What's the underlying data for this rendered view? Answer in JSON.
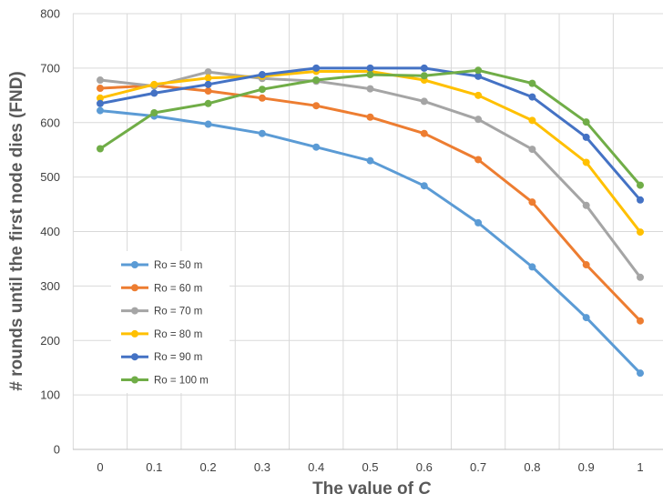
{
  "chart_data": {
    "type": "line",
    "xlabel": "The value of ",
    "xlabel_italic": "C",
    "ylabel": "# rounds until the first node dies (FND)",
    "x": [
      0,
      0.1,
      0.2,
      0.3,
      0.4,
      0.5,
      0.6,
      0.7,
      0.8,
      0.9,
      1
    ],
    "x_tick_labels": [
      "0",
      "0.1",
      "0.2",
      "0.3",
      "0.4",
      "0.5",
      "0.6",
      "0.7",
      "0.8",
      "0.9",
      "1"
    ],
    "ylim": [
      0,
      800
    ],
    "y_ticks": [
      0,
      100,
      200,
      300,
      400,
      500,
      600,
      700,
      800
    ],
    "y_tick_labels": [
      "0",
      "100",
      "200",
      "300",
      "400",
      "500",
      "600",
      "700",
      "800"
    ],
    "grid": true,
    "legend_position": "left-middle",
    "series": [
      {
        "name": "Ro = 50 m",
        "color": "#5B9BD5",
        "values": [
          622,
          612,
          597,
          580,
          555,
          530,
          484,
          416,
          335,
          242,
          140
        ]
      },
      {
        "name": "Ro = 60 m",
        "color": "#ED7D31",
        "values": [
          663,
          668,
          658,
          645,
          631,
          610,
          580,
          532,
          454,
          339,
          236
        ]
      },
      {
        "name": "Ro = 70 m",
        "color": "#A5A5A5",
        "values": [
          678,
          667,
          693,
          681,
          676,
          662,
          639,
          606,
          551,
          448,
          316
        ]
      },
      {
        "name": "Ro = 80 m",
        "color": "#FFC000",
        "values": [
          645,
          670,
          682,
          685,
          694,
          694,
          678,
          650,
          604,
          527,
          399
        ]
      },
      {
        "name": "Ro = 90 m",
        "color": "#4472C4",
        "values": [
          635,
          654,
          670,
          688,
          700,
          700,
          700,
          685,
          647,
          573,
          458
        ]
      },
      {
        "name": "Ro = 100 m",
        "color": "#70AD47",
        "values": [
          552,
          618,
          635,
          661,
          678,
          688,
          686,
          696,
          672,
          601,
          485
        ]
      }
    ]
  }
}
